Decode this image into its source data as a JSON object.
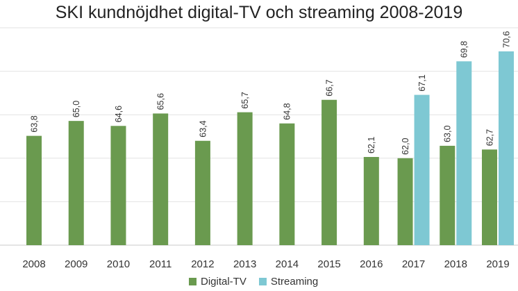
{
  "chart_data": {
    "type": "bar",
    "title": "SKI kundnöjdhet digital-TV och streaming 2008-2019",
    "xlabel": "",
    "ylabel": "",
    "categories": [
      "2008",
      "2009",
      "2010",
      "2011",
      "2012",
      "2013",
      "2014",
      "2015",
      "2016",
      "2017",
      "2018",
      "2019"
    ],
    "series": [
      {
        "name": "Digital-TV",
        "color": "#6a9a4f",
        "values": [
          63.8,
          65.0,
          64.6,
          65.6,
          63.4,
          65.7,
          64.8,
          66.7,
          62.1,
          62.0,
          63.0,
          62.7
        ],
        "labels": [
          "63,8",
          "65,0",
          "64,6",
          "65,6",
          "63,4",
          "65,7",
          "64,8",
          "66,7",
          "62,1",
          "62,0",
          "63,0",
          "62,7"
        ]
      },
      {
        "name": "Streaming",
        "color": "#7ec8d3",
        "values": [
          null,
          null,
          null,
          null,
          null,
          null,
          null,
          null,
          null,
          67.1,
          69.8,
          70.6
        ],
        "labels": [
          null,
          null,
          null,
          null,
          null,
          null,
          null,
          null,
          null,
          "67,1",
          "69,8",
          "70,6"
        ]
      }
    ],
    "ylim": [
      55,
      72.5
    ],
    "gridlines": [
      55,
      58.5,
      62,
      65.5,
      69,
      72.5
    ],
    "grid": true,
    "legend_position": "bottom"
  }
}
